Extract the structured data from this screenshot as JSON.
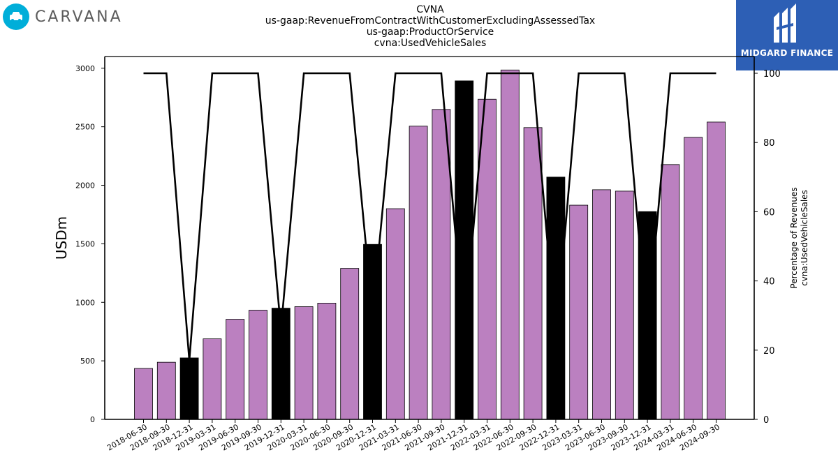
{
  "header": {
    "title_lines": [
      "CVNA",
      "us-gaap:RevenueFromContractWithCustomerExcludingAssessedTax",
      "us-gaap:ProductOrService",
      "cvna:UsedVehicleSales"
    ]
  },
  "logos": {
    "left_brand": "CARVANA",
    "right_brand": "MIDGARD FINANCE"
  },
  "chart_data": {
    "type": "bar",
    "ylabel": "USDm",
    "y2label_lines": [
      "Percentage of Revenues",
      "cvna:UsedVehicleSales"
    ],
    "ylim": [
      0,
      3100
    ],
    "y2lim": [
      0,
      100
    ],
    "yticks": [
      0,
      500,
      1000,
      1500,
      2000,
      2500,
      3000
    ],
    "y2ticks": [
      0,
      20,
      40,
      60,
      80,
      100
    ],
    "categories": [
      "2018-06-30",
      "2018-09-30",
      "2018-12-31",
      "2019-03-31",
      "2019-06-30",
      "2019-09-30",
      "2019-12-31",
      "2020-03-31",
      "2020-06-30",
      "2020-09-30",
      "2020-12-31",
      "2021-03-31",
      "2021-06-30",
      "2021-09-30",
      "2021-12-31",
      "2022-03-31",
      "2022-06-30",
      "2022-09-30",
      "2022-12-31",
      "2023-03-31",
      "2023-06-30",
      "2023-09-30",
      "2023-12-31",
      "2024-03-31",
      "2024-06-30",
      "2024-09-30"
    ],
    "values": [
      435,
      488,
      525,
      688,
      855,
      933,
      950,
      963,
      993,
      1290,
      1495,
      1800,
      2505,
      2648,
      2892,
      2735,
      2985,
      2493,
      2070,
      1830,
      1962,
      1950,
      1775,
      2177,
      2410,
      2540
    ],
    "bar_colors": [
      "#bb80c0",
      "#bb80c0",
      "#000000",
      "#bb80c0",
      "#bb80c0",
      "#bb80c0",
      "#000000",
      "#bb80c0",
      "#bb80c0",
      "#bb80c0",
      "#000000",
      "#bb80c0",
      "#bb80c0",
      "#bb80c0",
      "#000000",
      "#bb80c0",
      "#bb80c0",
      "#bb80c0",
      "#000000",
      "#bb80c0",
      "#bb80c0",
      "#bb80c0",
      "#000000",
      "#bb80c0",
      "#bb80c0",
      "#bb80c0"
    ],
    "pct_series": [
      100,
      100,
      17,
      100,
      100,
      100,
      26,
      100,
      100,
      100,
      30,
      100,
      100,
      100,
      25,
      100,
      100,
      100,
      23,
      100,
      100,
      100,
      25,
      100,
      100,
      100
    ],
    "colors": {
      "primary_bar": "#bb80c0",
      "q4_bar": "#000000",
      "line": "#000000"
    },
    "grid": false,
    "legend": "none"
  }
}
